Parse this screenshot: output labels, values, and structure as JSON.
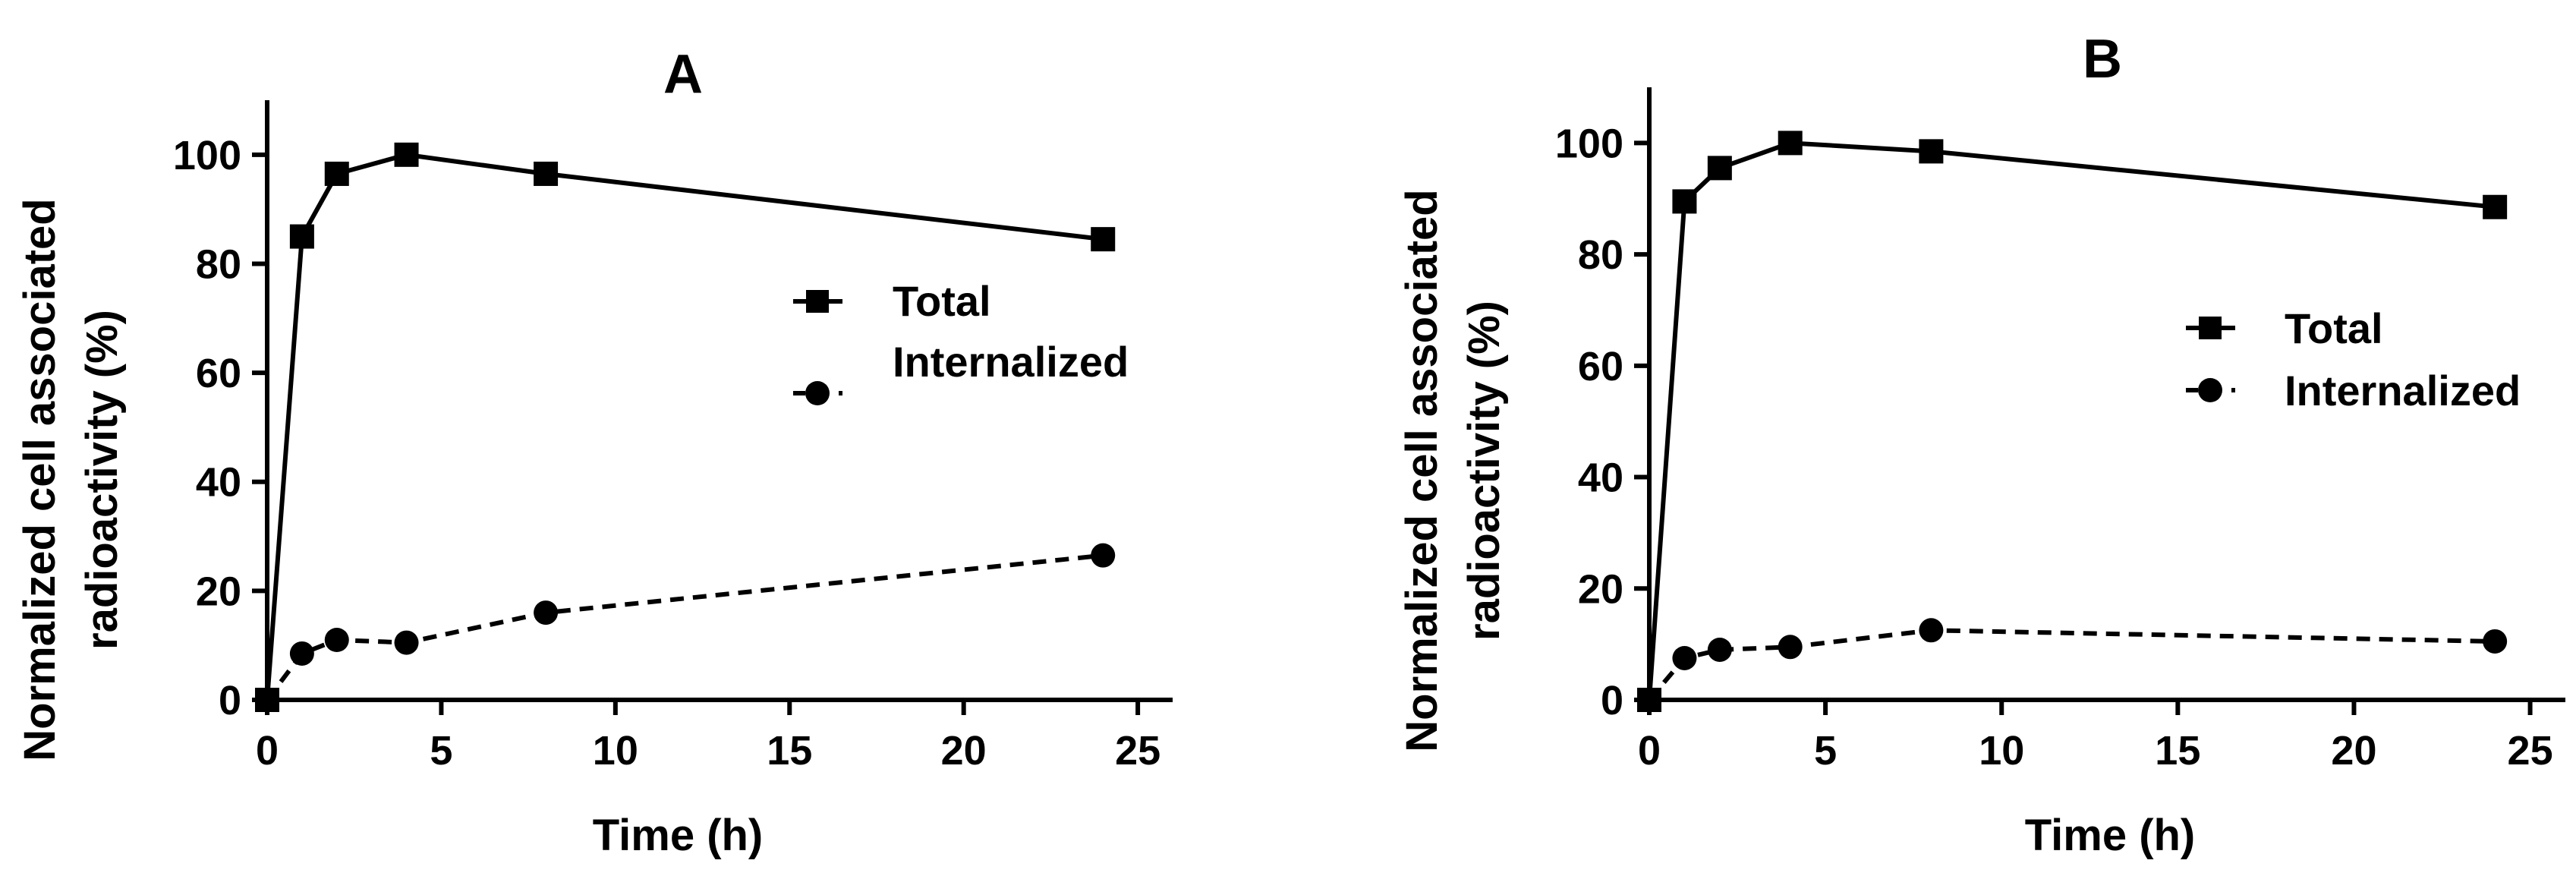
{
  "chart_data": [
    {
      "type": "line",
      "title": "A",
      "xlabel": "Time (h)",
      "ylabel_lines": [
        "Normalized cell associated",
        "radioactivity (%)"
      ],
      "xlim": [
        0,
        26
      ],
      "ylim": [
        0,
        110
      ],
      "xticks": [
        0,
        5,
        10,
        15,
        20,
        25
      ],
      "yticks": [
        0,
        20,
        40,
        60,
        80,
        100
      ],
      "grid": false,
      "legend_position": "right",
      "series": [
        {
          "name": "Total",
          "marker": "square",
          "line_style": "solid",
          "x": [
            0,
            1,
            2,
            4,
            8,
            24
          ],
          "y": [
            0,
            85,
            96.5,
            100,
            96.5,
            84.5
          ]
        },
        {
          "name": "Internalized",
          "marker": "circle",
          "line_style": "dashed",
          "x": [
            0,
            1,
            2,
            4,
            8,
            24
          ],
          "y": [
            0,
            8.5,
            11,
            10.5,
            16,
            26.5
          ]
        }
      ]
    },
    {
      "type": "line",
      "title": "B",
      "xlabel": "Time (h)",
      "ylabel_lines": [
        "Normalized cell associated",
        "radioactivity (%)"
      ],
      "xlim": [
        0,
        26
      ],
      "ylim": [
        0,
        110
      ],
      "xticks": [
        0,
        5,
        10,
        15,
        20,
        25
      ],
      "yticks": [
        0,
        20,
        40,
        60,
        80,
        100
      ],
      "grid": false,
      "legend_position": "right",
      "series": [
        {
          "name": "Total",
          "marker": "square",
          "line_style": "solid",
          "x": [
            0,
            1,
            2,
            4,
            8,
            24
          ],
          "y": [
            0,
            89.5,
            95.5,
            100,
            98.5,
            88.5
          ]
        },
        {
          "name": "Internalized",
          "marker": "circle",
          "line_style": "dashed",
          "x": [
            0,
            1,
            2,
            4,
            8,
            24
          ],
          "y": [
            0,
            7.5,
            9,
            9.5,
            12.5,
            10.5
          ]
        }
      ]
    }
  ]
}
